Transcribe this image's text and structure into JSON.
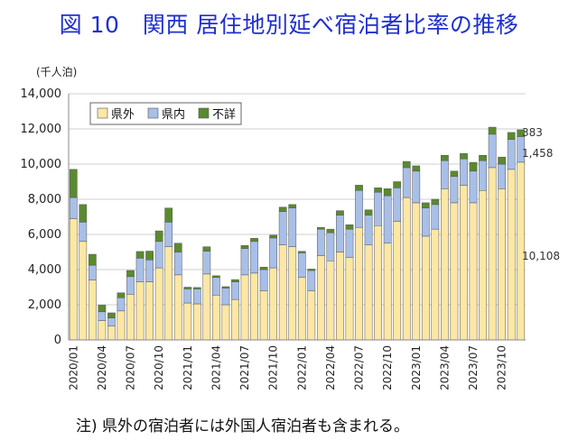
{
  "chart_data": {
    "type": "bar",
    "stacked": true,
    "title": "図 10　関西 居住地別延べ宿泊者比率の推移",
    "unit_label": "(千人泊)",
    "ylim": [
      0,
      14000
    ],
    "yticks": [
      "0",
      "2,000",
      "4,000",
      "6,000",
      "8,000",
      "10,000",
      "12,000",
      "14,000"
    ],
    "grid": true,
    "legend_position": "top-left",
    "categories": [
      "2020/01",
      "2020/02",
      "2020/03",
      "2020/04",
      "2020/05",
      "2020/06",
      "2020/07",
      "2020/08",
      "2020/09",
      "2020/10",
      "2020/11",
      "2020/12",
      "2021/01",
      "2021/02",
      "2021/03",
      "2021/04",
      "2021/05",
      "2021/06",
      "2021/07",
      "2021/08",
      "2021/09",
      "2021/10",
      "2021/11",
      "2021/12",
      "2022/01",
      "2022/02",
      "2022/03",
      "2022/04",
      "2022/05",
      "2022/06",
      "2022/07",
      "2022/08",
      "2022/09",
      "2022/10",
      "2022/11",
      "2022/12",
      "2023/01",
      "2023/02",
      "2023/03",
      "2023/04",
      "2023/05",
      "2023/06",
      "2023/07",
      "2023/08",
      "2023/09",
      "2023/10",
      "2023/11",
      "2023/12"
    ],
    "xtick_labels": [
      "2020/01",
      "2020/04",
      "2020/07",
      "2020/10",
      "2021/01",
      "2021/04",
      "2021/07",
      "2021/10",
      "2022/01",
      "2022/04",
      "2022/07",
      "2022/10",
      "2023/01",
      "2023/04",
      "2023/07",
      "2023/10"
    ],
    "series": [
      {
        "name": "県外",
        "color": "#fde7a4",
        "values": [
          6900,
          5600,
          3400,
          1100,
          800,
          1650,
          2600,
          3300,
          3300,
          4100,
          5300,
          3700,
          2100,
          2050,
          3750,
          2550,
          2000,
          2300,
          3700,
          3800,
          2800,
          4100,
          5400,
          5300,
          3550,
          2800,
          4800,
          4500,
          5000,
          4700,
          6400,
          5400,
          6500,
          5500,
          6750,
          8100,
          7800,
          5900,
          6300,
          8600,
          7800,
          8800,
          7800,
          8500,
          9800,
          8600,
          9700,
          10108
        ]
      },
      {
        "name": "県内",
        "color": "#a8bfe8",
        "values": [
          1200,
          1100,
          850,
          500,
          450,
          750,
          1000,
          1350,
          1250,
          1500,
          1400,
          1300,
          800,
          850,
          1300,
          1000,
          950,
          1000,
          1500,
          1800,
          1200,
          1700,
          1900,
          2200,
          1400,
          1150,
          1500,
          1600,
          2100,
          1600,
          2100,
          1700,
          1900,
          2700,
          1900,
          1700,
          1800,
          1600,
          1400,
          1600,
          1500,
          1500,
          1800,
          1700,
          1900,
          1400,
          1700,
          1458
        ]
      },
      {
        "name": "不詳",
        "color": "#5a8a2f",
        "values": [
          1600,
          1000,
          620,
          380,
          290,
          280,
          350,
          380,
          500,
          600,
          800,
          500,
          100,
          80,
          250,
          100,
          80,
          130,
          170,
          180,
          140,
          160,
          250,
          200,
          90,
          80,
          100,
          200,
          250,
          250,
          300,
          300,
          250,
          400,
          350,
          350,
          300,
          300,
          300,
          300,
          300,
          300,
          500,
          300,
          400,
          400,
          400,
          383
        ]
      }
    ],
    "annotations": [
      "383",
      "1,458",
      "10,108"
    ]
  },
  "footnote": "注) 県外の宿泊者には外国人宿泊者も含まれる。"
}
